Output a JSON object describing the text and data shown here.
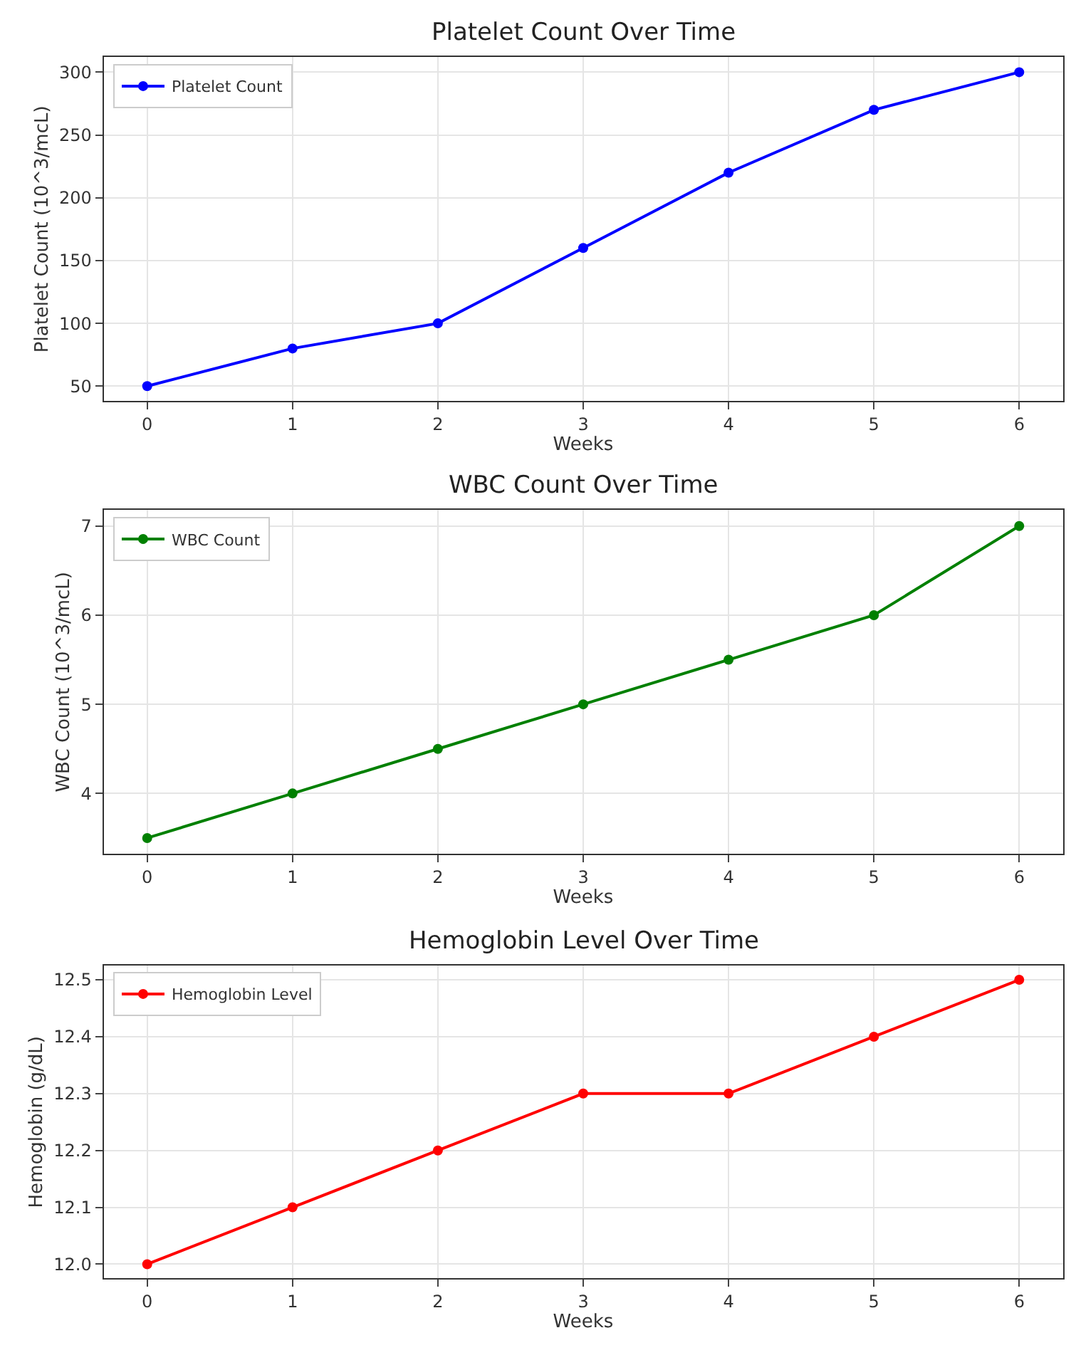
{
  "chart_data": [
    {
      "type": "line",
      "title": "Platelet Count Over Time",
      "xlabel": "Weeks",
      "ylabel": "Platelet Count (10^3/mcL)",
      "x": [
        0,
        1,
        2,
        3,
        4,
        5,
        6
      ],
      "xlim": [
        -0.3,
        6.3
      ],
      "xticks": [
        0,
        1,
        2,
        3,
        4,
        5,
        6
      ],
      "ylim": [
        38,
        312
      ],
      "yticks": [
        50,
        100,
        150,
        200,
        250,
        300
      ],
      "grid": true,
      "legend": "top left",
      "marker": "circle",
      "series": [
        {
          "name": "Platelet Count",
          "color": "#0000ff",
          "values": [
            50,
            80,
            100,
            160,
            220,
            270,
            300
          ]
        }
      ]
    },
    {
      "type": "line",
      "title": "WBC Count Over Time",
      "xlabel": "Weeks",
      "ylabel": "WBC Count (10^3/mcL)",
      "x": [
        0,
        1,
        2,
        3,
        4,
        5,
        6
      ],
      "xlim": [
        -0.3,
        6.3
      ],
      "xticks": [
        0,
        1,
        2,
        3,
        4,
        5,
        6
      ],
      "ylim": [
        3.32,
        7.18
      ],
      "yticks": [
        4,
        5,
        6,
        7
      ],
      "grid": true,
      "legend": "top left",
      "marker": "circle",
      "series": [
        {
          "name": "WBC Count",
          "color": "#008000",
          "values": [
            3.5,
            4,
            4.5,
            5,
            5.5,
            6,
            7
          ]
        }
      ]
    },
    {
      "type": "line",
      "title": "Hemoglobin Level Over Time",
      "xlabel": "Weeks",
      "ylabel": "Hemoglobin (g/dL)",
      "x": [
        0,
        1,
        2,
        3,
        4,
        5,
        6
      ],
      "xlim": [
        -0.3,
        6.3
      ],
      "xticks": [
        0,
        1,
        2,
        3,
        4,
        5,
        6
      ],
      "ylim": [
        11.975,
        12.525
      ],
      "yticks": [
        {
          "value": 12,
          "label": "12.0"
        },
        12.1,
        12.2,
        12.3,
        12.4,
        12.5
      ],
      "grid": true,
      "legend": "top left",
      "marker": "circle",
      "series": [
        {
          "name": "Hemoglobin Level",
          "color": "#ff0000",
          "values": [
            12,
            12.1,
            12.2,
            12.3,
            12.3,
            12.4,
            12.5
          ]
        }
      ]
    }
  ]
}
